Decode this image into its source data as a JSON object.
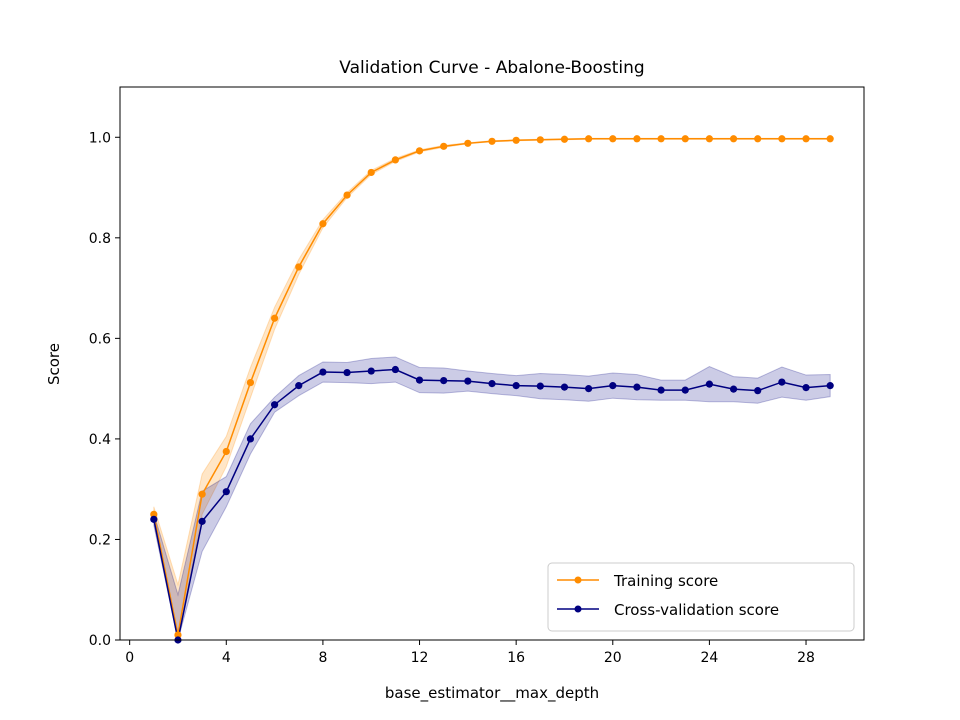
{
  "chart_data": {
    "type": "line",
    "title": "Validation Curve - Abalone-Boosting",
    "xlabel": "base_estimator__max_depth",
    "ylabel": "Score",
    "xlim": [
      -0.4,
      30.4
    ],
    "ylim": [
      0.0,
      1.1
    ],
    "xticks": [
      0,
      4,
      8,
      12,
      16,
      20,
      24,
      28
    ],
    "yticks": [
      0.0,
      0.2,
      0.4,
      0.6,
      0.8,
      1.0
    ],
    "xtick_labels": [
      "0",
      "4",
      "8",
      "12",
      "16",
      "20",
      "24",
      "28"
    ],
    "ytick_labels": [
      "0.0",
      "0.2",
      "0.4",
      "0.6",
      "0.8",
      "1.0"
    ],
    "grid": false,
    "legend_position": "bottom-right",
    "x": [
      1,
      2,
      3,
      4,
      5,
      6,
      7,
      8,
      9,
      10,
      11,
      12,
      13,
      14,
      15,
      16,
      17,
      18,
      19,
      20,
      21,
      22,
      23,
      24,
      25,
      26,
      27,
      28,
      29
    ],
    "series": [
      {
        "name": "Training score",
        "color": "#ff8c00",
        "values": [
          0.25,
          0.01,
          0.29,
          0.375,
          0.512,
          0.64,
          0.742,
          0.828,
          0.885,
          0.93,
          0.955,
          0.973,
          0.982,
          0.988,
          0.992,
          0.994,
          0.995,
          0.996,
          0.997,
          0.997,
          0.997,
          0.997,
          0.997,
          0.997,
          0.997,
          0.997,
          0.997,
          0.997,
          0.997
        ],
        "std": [
          0.015,
          0.1,
          0.04,
          0.03,
          0.03,
          0.022,
          0.015,
          0.008,
          0.005,
          0.004,
          0.003,
          0.002,
          0.002,
          0.001,
          0.001,
          0.001,
          0.001,
          0.001,
          0.001,
          0.001,
          0.001,
          0.001,
          0.001,
          0.001,
          0.001,
          0.001,
          0.001,
          0.001,
          0.001
        ]
      },
      {
        "name": "Cross-validation score",
        "color": "#000080",
        "values": [
          0.24,
          0.0,
          0.236,
          0.295,
          0.4,
          0.468,
          0.506,
          0.533,
          0.532,
          0.535,
          0.538,
          0.517,
          0.516,
          0.515,
          0.51,
          0.506,
          0.505,
          0.503,
          0.5,
          0.506,
          0.503,
          0.497,
          0.497,
          0.509,
          0.499,
          0.496,
          0.513,
          0.502,
          0.506
        ],
        "std": [
          0.012,
          0.09,
          0.06,
          0.03,
          0.03,
          0.015,
          0.02,
          0.02,
          0.02,
          0.025,
          0.025,
          0.025,
          0.025,
          0.02,
          0.02,
          0.02,
          0.025,
          0.025,
          0.025,
          0.025,
          0.025,
          0.02,
          0.02,
          0.035,
          0.025,
          0.025,
          0.03,
          0.025,
          0.022
        ]
      }
    ]
  }
}
